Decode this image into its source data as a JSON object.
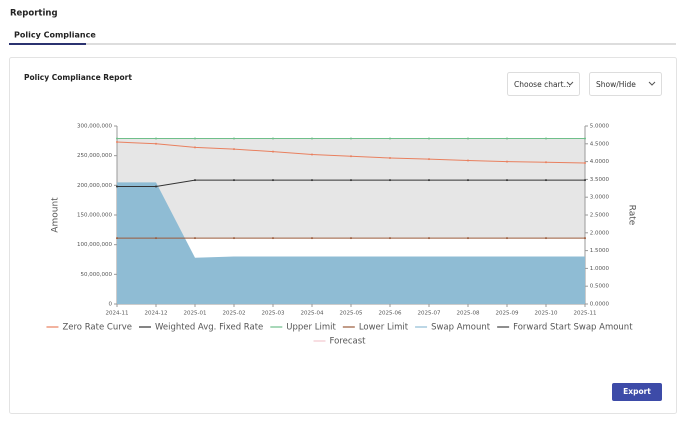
{
  "page": {
    "header": "Reporting",
    "tab": "Policy Compliance",
    "card_title": "Policy Compliance Report",
    "chart_select": "Choose chart...",
    "show_hide": "Show/Hide",
    "export": "Export"
  },
  "chart_data": {
    "type": "combo",
    "ylabel": "Amount",
    "y2label": "Rate",
    "categories": [
      "2024-11",
      "2024-12",
      "2025-01",
      "2025-02",
      "2025-03",
      "2025-04",
      "2025-05",
      "2025-06",
      "2025-07",
      "2025-08",
      "2025-09",
      "2025-10",
      "2025-11"
    ],
    "ylim": [
      0,
      300000000
    ],
    "yticks": [
      {
        "value": 0,
        "label": "0"
      },
      {
        "value": 50000000,
        "label": "50,000,000"
      },
      {
        "value": 100000000,
        "label": "100,000,000"
      },
      {
        "value": 150000000,
        "label": "150,000,000"
      },
      {
        "value": 200000000,
        "label": "200,000,000"
      },
      {
        "value": 250000000,
        "label": "250,000,000"
      },
      {
        "value": 300000000,
        "label": "300,000,000"
      }
    ],
    "y2lim": [
      0,
      5
    ],
    "y2ticks": [
      {
        "value": 0,
        "label": "0.0000"
      },
      {
        "value": 0.5,
        "label": "0.5000"
      },
      {
        "value": 1,
        "label": "1.0000"
      },
      {
        "value": 1.5,
        "label": "1.5000"
      },
      {
        "value": 2,
        "label": "2.0000"
      },
      {
        "value": 2.5,
        "label": "2.5000"
      },
      {
        "value": 3,
        "label": "3.0000"
      },
      {
        "value": 3.5,
        "label": "3.5000"
      },
      {
        "value": 4,
        "label": "4.0000"
      },
      {
        "value": 4.5,
        "label": "4.5000"
      },
      {
        "value": 5,
        "label": "5.0000"
      }
    ],
    "series": [
      {
        "name": "Zero Rate Curve",
        "color": "#e9805f",
        "axis": "y2",
        "kind": "line",
        "values": [
          4.55,
          4.5,
          4.4,
          4.35,
          4.28,
          4.2,
          4.15,
          4.1,
          4.07,
          4.03,
          4.0,
          3.98,
          3.96
        ]
      },
      {
        "name": "Weighted Avg. Fixed Rate",
        "color": "#333333",
        "axis": "y2",
        "kind": "line",
        "values": [
          3.3,
          3.3,
          3.48,
          3.48,
          3.48,
          3.48,
          3.48,
          3.48,
          3.48,
          3.48,
          3.48,
          3.48,
          3.48
        ]
      },
      {
        "name": "Upper Limit",
        "color": "#6fbf8a",
        "axis": "y2",
        "kind": "line",
        "values": [
          4.65,
          4.65,
          4.65,
          4.65,
          4.65,
          4.65,
          4.65,
          4.65,
          4.65,
          4.65,
          4.65,
          4.65,
          4.65
        ]
      },
      {
        "name": "Lower Limit",
        "color": "#9a5a3a",
        "axis": "y2",
        "kind": "line",
        "values": [
          1.85,
          1.85,
          1.85,
          1.85,
          1.85,
          1.85,
          1.85,
          1.85,
          1.85,
          1.85,
          1.85,
          1.85,
          1.85
        ]
      },
      {
        "name": "Swap Amount",
        "color": "#8fbcd4",
        "axis": "y",
        "kind": "area",
        "values": [
          205000000,
          205000000,
          78000000,
          80000000,
          80000000,
          80000000,
          80000000,
          80000000,
          80000000,
          80000000,
          80000000,
          80000000,
          80000000
        ]
      },
      {
        "name": "Forward Start Swap Amount",
        "color": "#444444",
        "axis": "y",
        "kind": "line",
        "values": [
          null,
          null,
          null,
          null,
          null,
          null,
          null,
          null,
          null,
          null,
          null,
          null,
          null
        ]
      },
      {
        "name": "Forecast",
        "color": "#f2c9cf",
        "axis": "y2",
        "kind": "line",
        "values": [
          null,
          null,
          null,
          null,
          null,
          null,
          null,
          null,
          null,
          null,
          null,
          null,
          null
        ]
      }
    ],
    "band_color": "#e6e6e6",
    "grid": false
  }
}
